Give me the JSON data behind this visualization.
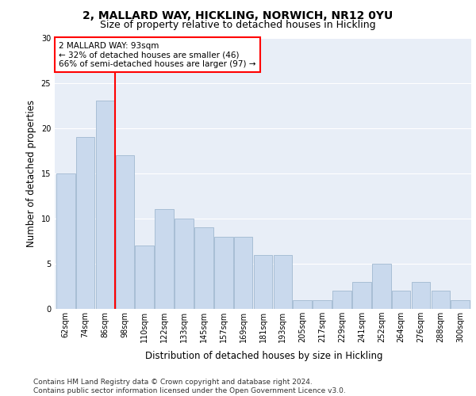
{
  "title1": "2, MALLARD WAY, HICKLING, NORWICH, NR12 0YU",
  "title2": "Size of property relative to detached houses in Hickling",
  "xlabel": "Distribution of detached houses by size in Hickling",
  "ylabel": "Number of detached properties",
  "categories": [
    "62sqm",
    "74sqm",
    "86sqm",
    "98sqm",
    "110sqm",
    "122sqm",
    "133sqm",
    "145sqm",
    "157sqm",
    "169sqm",
    "181sqm",
    "193sqm",
    "205sqm",
    "217sqm",
    "229sqm",
    "241sqm",
    "252sqm",
    "264sqm",
    "276sqm",
    "288sqm",
    "300sqm"
  ],
  "values": [
    15,
    19,
    23,
    17,
    7,
    11,
    10,
    9,
    8,
    8,
    6,
    6,
    1,
    1,
    2,
    3,
    5,
    2,
    3,
    2,
    1
  ],
  "bar_color": "#c9d9ed",
  "bar_edge_color": "#a0b8d0",
  "vline_x": 2.5,
  "vline_color": "red",
  "annotation_text": "2 MALLARD WAY: 93sqm\n← 32% of detached houses are smaller (46)\n66% of semi-detached houses are larger (97) →",
  "annotation_box_color": "white",
  "annotation_box_edge_color": "red",
  "ylim": [
    0,
    30
  ],
  "yticks": [
    0,
    5,
    10,
    15,
    20,
    25,
    30
  ],
  "footnote": "Contains HM Land Registry data © Crown copyright and database right 2024.\nContains public sector information licensed under the Open Government Licence v3.0.",
  "bg_color": "#e8eef7",
  "title1_fontsize": 10,
  "title2_fontsize": 9,
  "axis_label_fontsize": 8.5,
  "tick_fontsize": 7,
  "footnote_fontsize": 6.5,
  "annotation_fontsize": 7.5
}
